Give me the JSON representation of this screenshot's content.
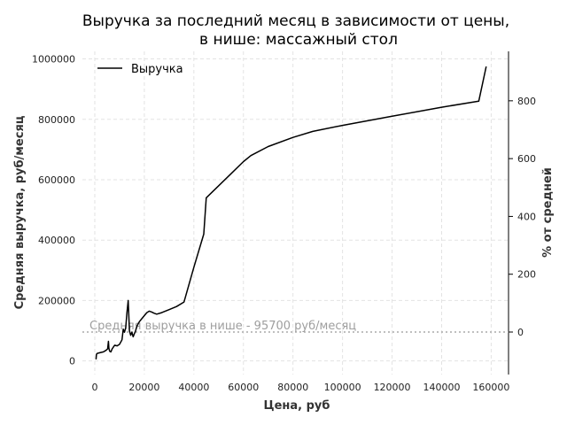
{
  "chart_data": {
    "type": "line",
    "title": "Выручка за последний месяц в зависимости от цены,",
    "subtitle": "в нише: массажный стол",
    "xlabel": "Цена, руб",
    "ylabel": "Средняя выручка, руб/месяц",
    "y2label": "% от средней",
    "xlim": [
      -5000,
      167000
    ],
    "ylim": [
      -45000,
      1025000
    ],
    "xticks": [
      "0",
      "20000",
      "40000",
      "60000",
      "80000",
      "100000",
      "120000",
      "140000",
      "160000"
    ],
    "yticks": [
      "0",
      "200000",
      "400000",
      "600000",
      "800000",
      "1000000"
    ],
    "y2ticks": [
      "0",
      "200",
      "400",
      "600",
      "800"
    ],
    "grid": true,
    "legend": {
      "position": "top-left",
      "entries": [
        "Выручка"
      ]
    },
    "reference_line": {
      "value": 95700,
      "label": "Средняя выручка в нише - 95700 руб/месяц"
    },
    "series": [
      {
        "name": "Выручка",
        "color": "#000000",
        "x": [
          500,
          700,
          1000,
          2000,
          3500,
          4500,
          5200,
          5500,
          5700,
          6000,
          6500,
          7000,
          8000,
          9000,
          10000,
          11000,
          11500,
          12000,
          12500,
          13000,
          13500,
          14000,
          14500,
          15000,
          15500,
          16000,
          16500,
          17000,
          18000,
          19000,
          20000,
          21000,
          22000,
          23000,
          24000,
          25000,
          27000,
          30000,
          33000,
          36000,
          40000,
          44000,
          45000,
          50000,
          55000,
          60000,
          63000,
          70000,
          80000,
          88000,
          100000,
          120000,
          140000,
          155000,
          158000
        ],
        "y": [
          5000,
          22000,
          25000,
          27000,
          30000,
          35000,
          40000,
          65000,
          42000,
          32000,
          30000,
          40000,
          52000,
          50000,
          55000,
          70000,
          105000,
          95000,
          110000,
          160000,
          200000,
          100000,
          85000,
          95000,
          80000,
          90000,
          100000,
          115000,
          130000,
          140000,
          150000,
          160000,
          165000,
          162000,
          158000,
          155000,
          160000,
          170000,
          180000,
          195000,
          310000,
          420000,
          540000,
          580000,
          620000,
          660000,
          680000,
          710000,
          740000,
          760000,
          780000,
          810000,
          840000,
          860000,
          975000
        ]
      }
    ]
  }
}
